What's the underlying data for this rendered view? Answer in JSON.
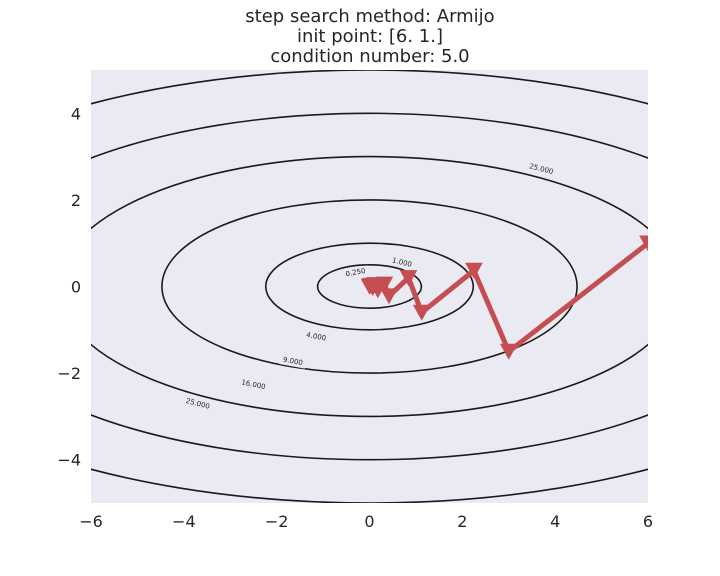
{
  "chart_data": {
    "type": "contour",
    "title_lines": [
      "step search method: Armijo",
      "init point: [6. 1.]",
      "condition number: 5.0"
    ],
    "xlim": [
      -6,
      6
    ],
    "ylim": [
      -5,
      5
    ],
    "x_ticks": [
      -6,
      -4,
      -2,
      0,
      2,
      4,
      6
    ],
    "y_ticks": [
      -4,
      -2,
      0,
      2,
      4
    ],
    "x_tick_labels": [
      "−6",
      "−4",
      "−2",
      "0",
      "2",
      "4",
      "6"
    ],
    "y_tick_labels": [
      "−4",
      "−2",
      "0",
      "2",
      "4"
    ],
    "grid": false,
    "function": "f(x, y) = x^2/5 + y^2",
    "contour_levels": [
      0.25,
      1.0,
      4.0,
      9.0,
      16.0,
      25.0
    ],
    "contour_labels": [
      {
        "text": "0.250",
        "x": -0.3,
        "y": 0.32
      },
      {
        "text": "1.000",
        "x": 0.7,
        "y": 0.55
      },
      {
        "text": "4.000",
        "x": -1.15,
        "y": -1.16
      },
      {
        "text": "9.000",
        "x": -1.65,
        "y": -1.73
      },
      {
        "text": "16.000",
        "x": -2.5,
        "y": -2.27
      },
      {
        "text": "25.000",
        "x": -3.7,
        "y": -2.71
      },
      {
        "text": "25.000",
        "x": 3.7,
        "y": 2.71
      }
    ],
    "path": [
      [
        6.0,
        1.0
      ],
      [
        3.0,
        -1.5
      ],
      [
        2.25,
        0.37
      ],
      [
        1.125,
        -0.6
      ],
      [
        0.84,
        0.2
      ],
      [
        0.42,
        -0.22
      ],
      [
        0.32,
        0.05
      ],
      [
        0.18,
        -0.08
      ],
      [
        0.12,
        0.04
      ],
      [
        0.07,
        -0.03
      ],
      [
        0.03,
        0.02
      ],
      [
        0.0,
        0.0
      ]
    ],
    "colors": {
      "background": "#eaeaf2",
      "contour": "#1a1a1a",
      "path": "#c44e52",
      "text": "#262626"
    }
  }
}
